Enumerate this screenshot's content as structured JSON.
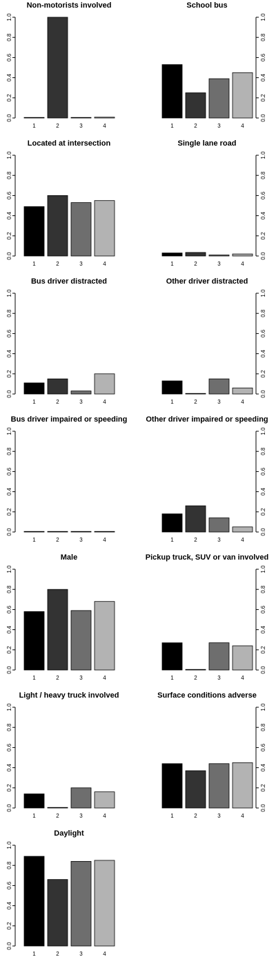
{
  "colors": [
    "#000000",
    "#333333",
    "#6e6e6e",
    "#b3b3b3"
  ],
  "chart_data": [
    {
      "type": "bar",
      "title": "Non-motorists involved",
      "categories": [
        "1",
        "2",
        "3",
        "4"
      ],
      "values": [
        0.005,
        1.0,
        0.005,
        0.008
      ],
      "ylim": [
        0,
        1
      ],
      "yticks": [
        "0.0",
        "0.2",
        "0.4",
        "0.6",
        "0.8",
        "1.0"
      ],
      "yaxis_side": "left"
    },
    {
      "type": "bar",
      "title": "School bus",
      "categories": [
        "1",
        "2",
        "3",
        "4"
      ],
      "values": [
        0.53,
        0.25,
        0.39,
        0.45
      ],
      "ylim": [
        0,
        1
      ],
      "yticks": [
        "0.0",
        "0.2",
        "0.4",
        "0.6",
        "0.8",
        "1.0"
      ],
      "yaxis_side": "right"
    },
    {
      "type": "bar",
      "title": "Located at intersection",
      "categories": [
        "1",
        "2",
        "3",
        "4"
      ],
      "values": [
        0.49,
        0.6,
        0.53,
        0.55
      ],
      "ylim": [
        0,
        1
      ],
      "yticks": [
        "0.0",
        "0.2",
        "0.4",
        "0.6",
        "0.8",
        "1.0"
      ],
      "yaxis_side": "left"
    },
    {
      "type": "bar",
      "title": "Single lane road",
      "categories": [
        "1",
        "2",
        "3",
        "4"
      ],
      "values": [
        0.03,
        0.035,
        0.01,
        0.02
      ],
      "ylim": [
        0,
        1
      ],
      "yticks": [
        "0.0",
        "0.2",
        "0.4",
        "0.6",
        "0.8",
        "1.0"
      ],
      "yaxis_side": "right"
    },
    {
      "type": "bar",
      "title": "Bus driver distracted",
      "categories": [
        "1",
        "2",
        "3",
        "4"
      ],
      "values": [
        0.11,
        0.15,
        0.03,
        0.2
      ],
      "ylim": [
        0,
        1
      ],
      "yticks": [
        "0.0",
        "0.2",
        "0.4",
        "0.6",
        "0.8",
        "1.0"
      ],
      "yaxis_side": "left"
    },
    {
      "type": "bar",
      "title": "Other driver distracted",
      "categories": [
        "1",
        "2",
        "3",
        "4"
      ],
      "values": [
        0.13,
        0.005,
        0.15,
        0.06
      ],
      "ylim": [
        0,
        1
      ],
      "yticks": [
        "0.0",
        "0.2",
        "0.4",
        "0.6",
        "0.8",
        "1.0"
      ],
      "yaxis_side": "right"
    },
    {
      "type": "bar",
      "title": "Bus driver impaired or speeding",
      "categories": [
        "1",
        "2",
        "3",
        "4"
      ],
      "values": [
        0.005,
        0.003,
        0.003,
        0.003
      ],
      "ylim": [
        0,
        1
      ],
      "yticks": [
        "0.0",
        "0.2",
        "0.4",
        "0.6",
        "0.8",
        "1.0"
      ],
      "yaxis_side": "left"
    },
    {
      "type": "bar",
      "title": "Other driver impaired or speeding",
      "categories": [
        "1",
        "2",
        "3",
        "4"
      ],
      "values": [
        0.18,
        0.26,
        0.14,
        0.05
      ],
      "ylim": [
        0,
        1
      ],
      "yticks": [
        "0.0",
        "0.2",
        "0.4",
        "0.6",
        "0.8",
        "1.0"
      ],
      "yaxis_side": "right"
    },
    {
      "type": "bar",
      "title": "Male",
      "categories": [
        "1",
        "2",
        "3",
        "4"
      ],
      "values": [
        0.58,
        0.8,
        0.59,
        0.68
      ],
      "ylim": [
        0,
        1
      ],
      "yticks": [
        "0.0",
        "0.2",
        "0.4",
        "0.6",
        "0.8",
        "1.0"
      ],
      "yaxis_side": "left"
    },
    {
      "type": "bar",
      "title": "Pickup truck, SUV or van involved",
      "categories": [
        "1",
        "2",
        "3",
        "4"
      ],
      "values": [
        0.27,
        0.005,
        0.27,
        0.24
      ],
      "ylim": [
        0,
        1
      ],
      "yticks": [
        "0.0",
        "0.2",
        "0.4",
        "0.6",
        "0.8",
        "1.0"
      ],
      "yaxis_side": "right"
    },
    {
      "type": "bar",
      "title": "Light / heavy truck involved",
      "categories": [
        "1",
        "2",
        "3",
        "4"
      ],
      "values": [
        0.14,
        0.003,
        0.2,
        0.16
      ],
      "ylim": [
        0,
        1
      ],
      "yticks": [
        "0.0",
        "0.2",
        "0.4",
        "0.6",
        "0.8",
        "1.0"
      ],
      "yaxis_side": "left"
    },
    {
      "type": "bar",
      "title": "Surface conditions adverse",
      "categories": [
        "1",
        "2",
        "3",
        "4"
      ],
      "values": [
        0.44,
        0.37,
        0.44,
        0.45
      ],
      "ylim": [
        0,
        1
      ],
      "yticks": [
        "0.0",
        "0.2",
        "0.4",
        "0.6",
        "0.8",
        "1.0"
      ],
      "yaxis_side": "right"
    },
    {
      "type": "bar",
      "title": "Daylight",
      "categories": [
        "1",
        "2",
        "3",
        "4"
      ],
      "values": [
        0.89,
        0.66,
        0.84,
        0.85
      ],
      "ylim": [
        0,
        1
      ],
      "yticks": [
        "0.0",
        "0.2",
        "0.4",
        "0.6",
        "0.8",
        "1.0"
      ],
      "yaxis_side": "left"
    }
  ]
}
